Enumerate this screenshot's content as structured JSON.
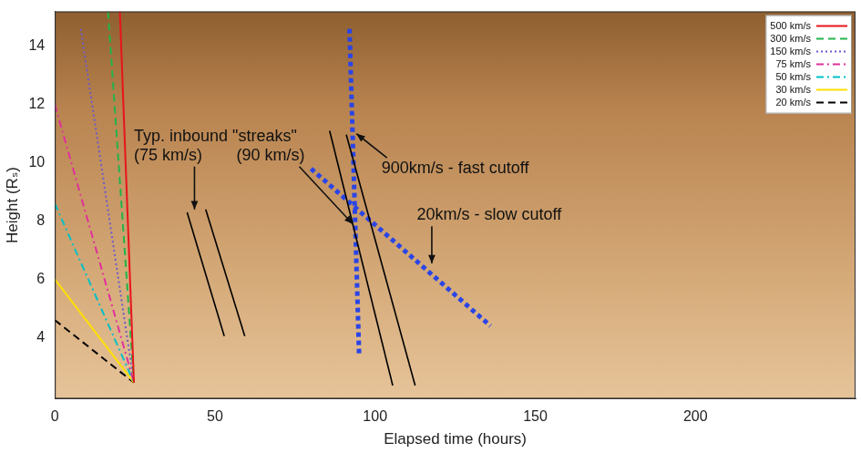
{
  "chart_data": {
    "type": "line",
    "x_label": "Elapsed time (hours)",
    "y_label": "Height (Rₛ)",
    "xlim": [
      0,
      250
    ],
    "ylim": [
      1.9,
      15.2
    ],
    "xticks": [
      0,
      50,
      100,
      150,
      200
    ],
    "yticks": [
      4,
      6,
      8,
      10,
      12,
      14
    ],
    "grid": false,
    "legend": "upper right",
    "series": [
      {
        "name": "500 km/s",
        "color": "#e8141c",
        "line_style": "solid",
        "x": [
          20.3,
          24.7
        ],
        "values": [
          15.2,
          2.45
        ]
      },
      {
        "name": "300 km/s",
        "color": "#22b34a",
        "line_style": "dashed",
        "x": [
          16.6,
          24.7
        ],
        "values": [
          15.2,
          2.45
        ]
      },
      {
        "name": "150 km/s",
        "color": "#6a5acd",
        "line_style": "dotted",
        "x": [
          8.1,
          24.7
        ],
        "values": [
          14.6,
          2.45
        ]
      },
      {
        "name": "75 km/s",
        "color": "#e0309a",
        "line_style": "dashdot",
        "x": [
          0,
          24.7
        ],
        "values": [
          12.0,
          2.45
        ]
      },
      {
        "name": "50 km/s",
        "color": "#00c0c8",
        "line_style": "dashdot",
        "x": [
          0,
          24.7
        ],
        "values": [
          8.6,
          2.45
        ]
      },
      {
        "name": "30 km/s",
        "color": "#ffe000",
        "line_style": "solid",
        "x": [
          0,
          24.7
        ],
        "values": [
          6.0,
          2.45
        ]
      },
      {
        "name": "20 km/s",
        "color": "#000000",
        "line_style": "dashed",
        "x": [
          0,
          24.7
        ],
        "values": [
          4.6,
          2.45
        ]
      }
    ],
    "lines": [
      {
        "color": "#000000",
        "line_style": "solid",
        "x": [
          41.3,
          52.9
        ],
        "values": [
          8.3,
          4.05
        ]
      },
      {
        "color": "#000000",
        "line_style": "solid",
        "x": [
          47.1,
          59.3
        ],
        "values": [
          8.4,
          4.05
        ]
      },
      {
        "color": "#000000",
        "line_style": "solid",
        "x": [
          85.8,
          105.5
        ],
        "values": [
          11.1,
          2.35
        ]
      },
      {
        "color": "#000000",
        "line_style": "solid",
        "x": [
          91.0,
          112.5
        ],
        "values": [
          10.97,
          2.35
        ]
      },
      {
        "color": "#2a45e6",
        "line_style": "dotted",
        "x": [
          92.0,
          95.0
        ],
        "values": [
          14.6,
          3.4
        ]
      },
      {
        "color": "#2a45e6",
        "line_style": "dotted",
        "x": [
          80.0,
          136.0
        ],
        "values": [
          9.8,
          4.4
        ]
      }
    ],
    "annotations": [
      {
        "text": "Typ. inbound \"streaks\"",
        "x": 24.7,
        "y": 10.9
      },
      {
        "text": "(75 km/s)",
        "x": 24.7,
        "y": 10.25,
        "arrow_to": [
          43.6,
          8.4
        ]
      },
      {
        "text": "(90 km/s)",
        "x": 56.7,
        "y": 10.25,
        "arrow_to": [
          93.0,
          7.9
        ]
      },
      {
        "text": "900km/s - fast cutoff",
        "x": 102.0,
        "y": 9.8,
        "arrow_to": [
          94.2,
          11.0
        ]
      },
      {
        "text": "20km/s - slow cutoff",
        "x": 113.0,
        "y": 8.2,
        "arrow_to": [
          117.7,
          6.55
        ]
      }
    ]
  }
}
